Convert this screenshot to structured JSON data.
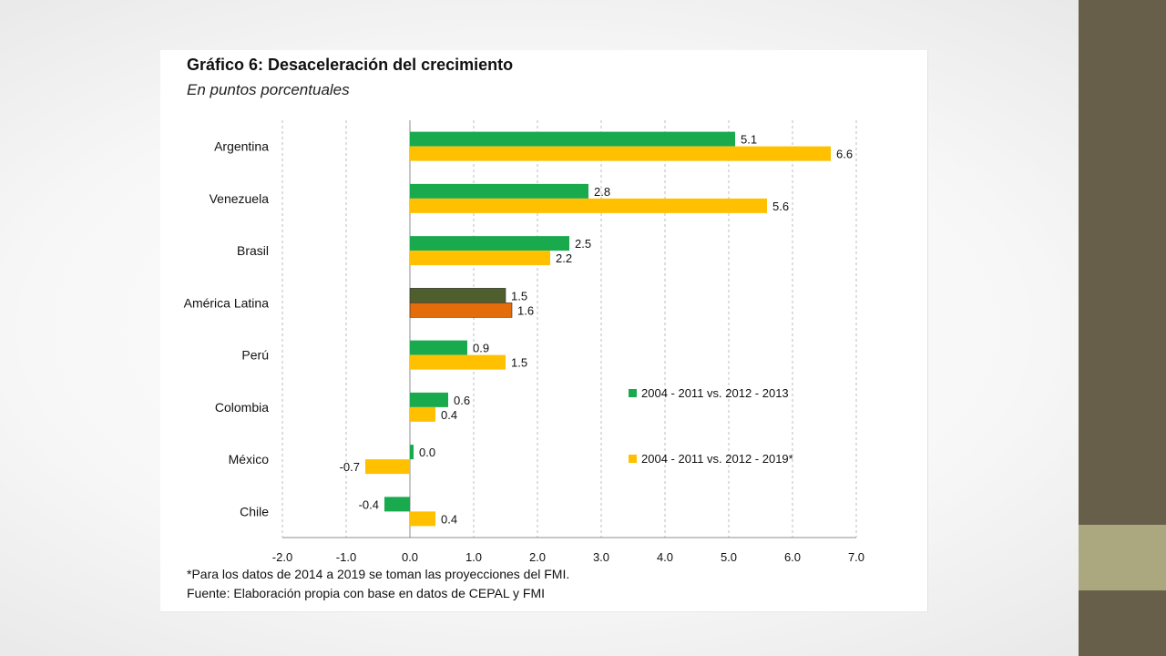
{
  "slide": {
    "colors": {
      "side_dark": "#675f49",
      "side_light": "#aba77e"
    }
  },
  "chart_data": {
    "type": "bar",
    "orientation": "horizontal",
    "title": "Gráfico 6: Desaceleración del crecimiento",
    "subtitle": "En puntos porcentuales",
    "categories": [
      "Argentina",
      "Venezuela",
      "Brasil",
      "América Latina",
      "Perú",
      "Colombia",
      "México",
      "Chile"
    ],
    "series": [
      {
        "name": "2004 - 2011 vs. 2012 - 2013",
        "color": "#1aaa4e",
        "values": [
          5.1,
          2.8,
          2.5,
          1.5,
          0.9,
          0.6,
          0.0,
          -0.4
        ],
        "labels": [
          "5.1",
          "2.8",
          "2.5",
          "1.5",
          "0.9",
          "0.6",
          "0.0",
          "-0.4"
        ]
      },
      {
        "name": "2004 - 2011 vs. 2012 - 2019*",
        "color": "#ffc000",
        "values": [
          6.6,
          5.6,
          2.2,
          1.6,
          1.5,
          0.4,
          -0.7,
          0.4
        ],
        "labels": [
          "6.6",
          "5.6",
          "2.2",
          "1.6",
          "1.5",
          "0.4",
          "-0.7",
          "0.4"
        ]
      }
    ],
    "highlight": {
      "category": "América Latina",
      "colors": [
        "#4f5e2d",
        "#e46c0a"
      ]
    },
    "xlim": [
      -2.0,
      7.0
    ],
    "xticks": [
      -2.0,
      -1.0,
      0.0,
      1.0,
      2.0,
      3.0,
      4.0,
      5.0,
      6.0,
      7.0
    ],
    "xtick_labels": [
      "-2.0",
      "-1.0",
      "0.0",
      "1.0",
      "2.0",
      "3.0",
      "4.0",
      "5.0",
      "6.0",
      "7.0"
    ],
    "grid": "vertical-dashed",
    "legend_position": "right",
    "xlabel": "",
    "ylabel": ""
  },
  "notes": {
    "footnote": "*Para los datos de 2014 a 2019 se toman las proyecciones del FMI.",
    "source": "Fuente: Elaboración propia con base en datos de CEPAL y FMI"
  }
}
